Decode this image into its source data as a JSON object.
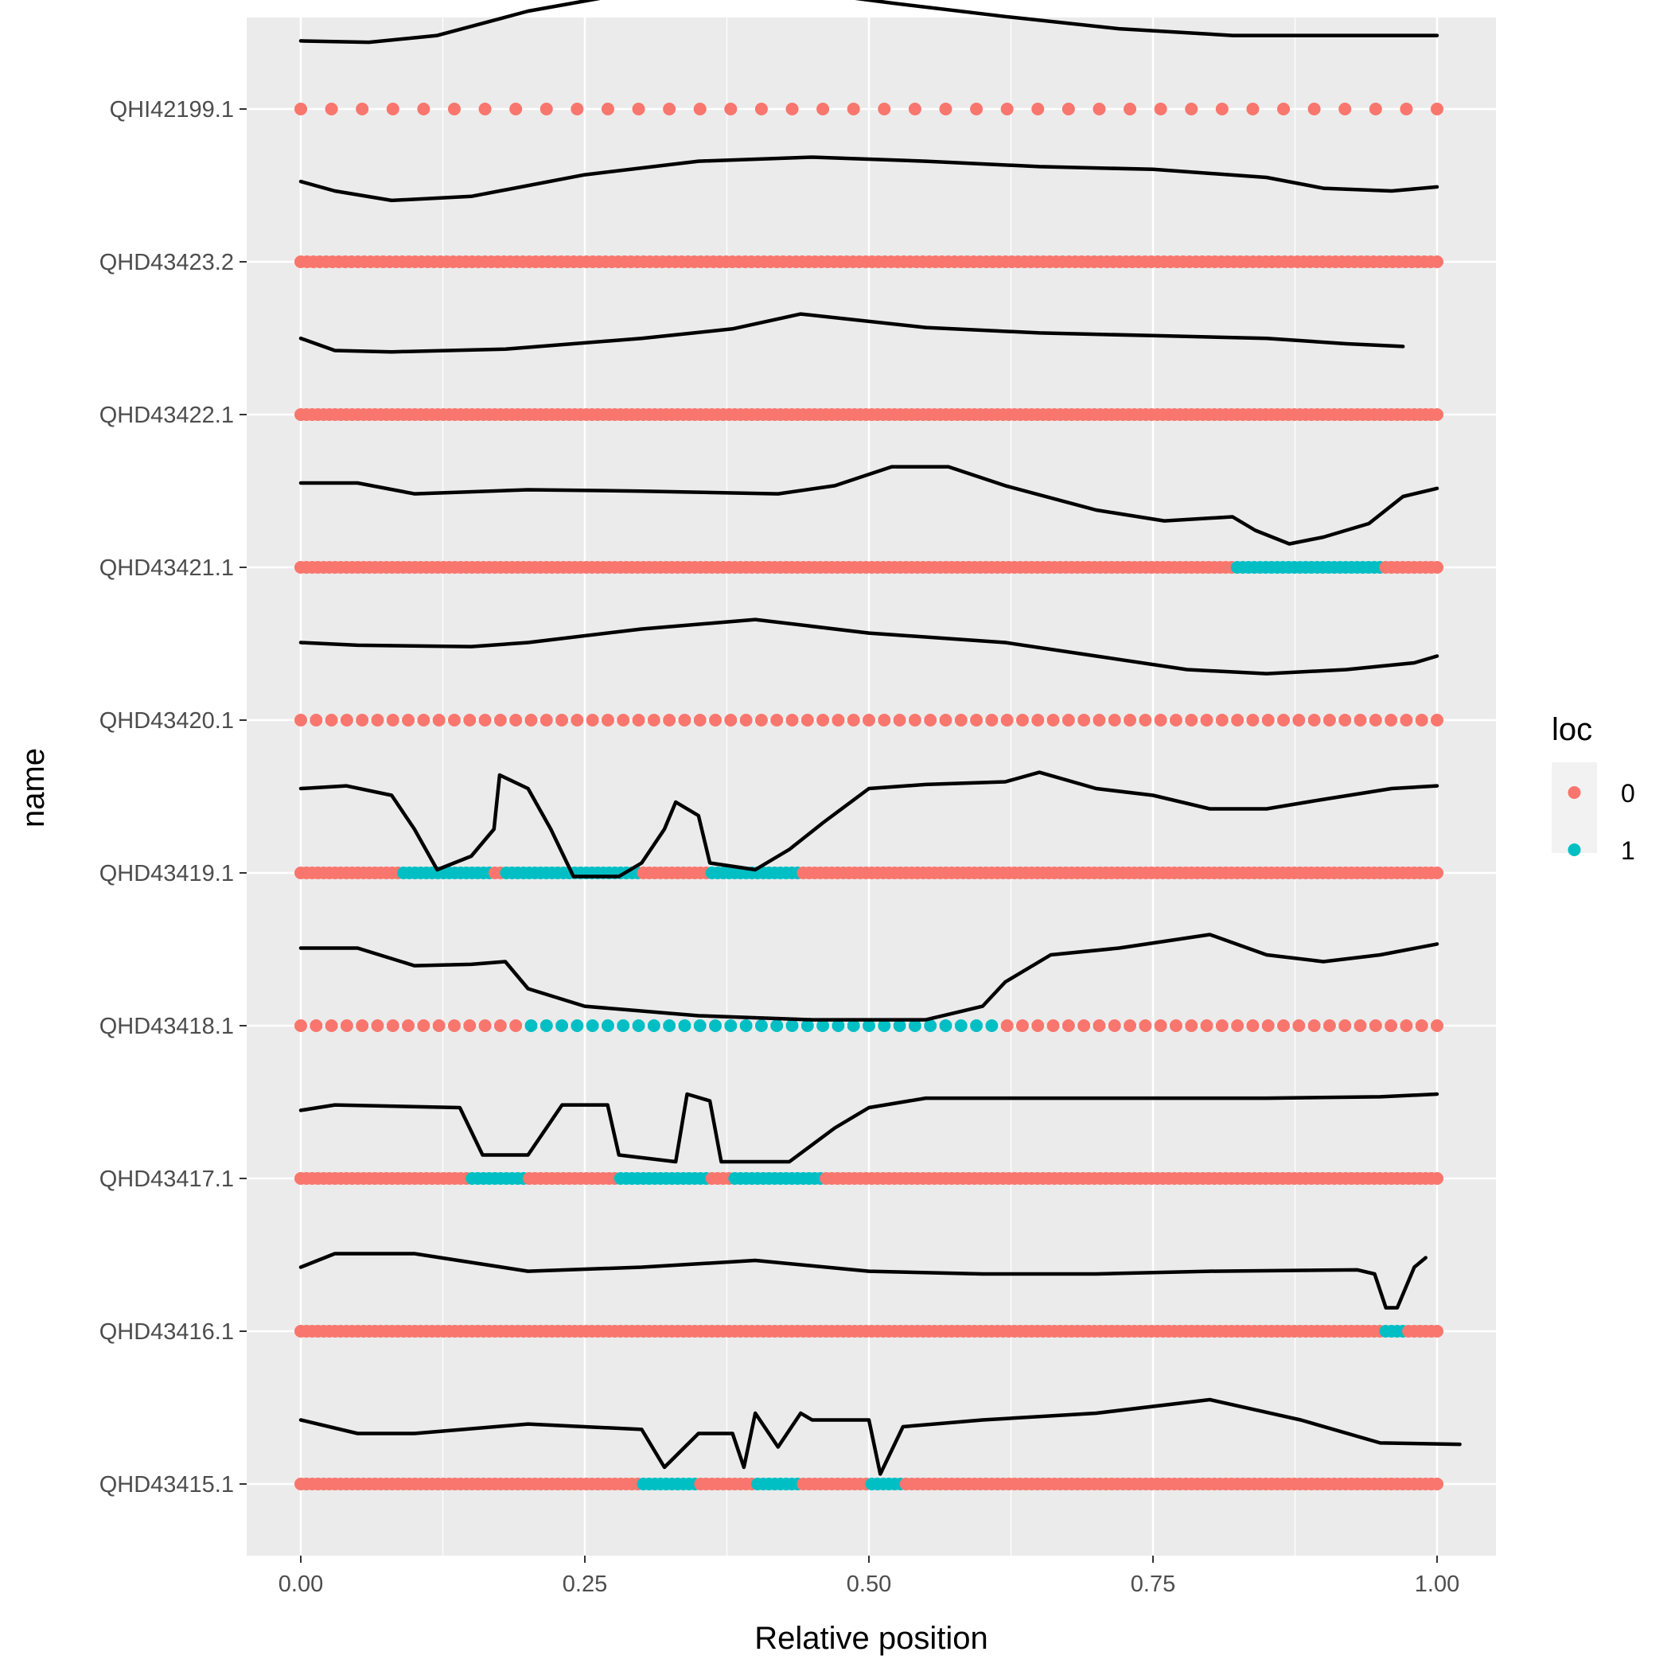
{
  "chart_data": {
    "type": "scatter",
    "xlabel": "Relative position",
    "ylabel": "name",
    "xlim": [
      -0.1,
      1.1
    ],
    "x_ticks": [
      0.0,
      0.25,
      0.5,
      0.75,
      1.0
    ],
    "x_tick_labels": [
      "0.00",
      "0.25",
      "0.50",
      "0.75",
      "1.00"
    ],
    "grid": true,
    "legend": {
      "title": "loc",
      "placement": "right",
      "entries": [
        {
          "label": "0",
          "color": "#F8766D"
        },
        {
          "label": "1",
          "color": "#00BFC4"
        }
      ]
    },
    "colors": {
      "loc0": "#F8766D",
      "loc1": "#00BFC4",
      "panel": "#EBEBEB",
      "grid": "#FFFFFF",
      "curve": "#000000"
    },
    "categories": [
      "QHI42199.1",
      "QHD43423.2",
      "QHD43422.1",
      "QHD43421.1",
      "QHD43420.1",
      "QHD43419.1",
      "QHD43418.1",
      "QHD43417.1",
      "QHD43416.1",
      "QHD43415.1"
    ],
    "series": [
      {
        "name": "QHI42199.1",
        "points": 38,
        "loc1_ranges": [],
        "curve": [
          [
            0.0,
            0.18
          ],
          [
            0.06,
            0.17
          ],
          [
            0.12,
            0.22
          ],
          [
            0.2,
            0.4
          ],
          [
            0.3,
            0.55
          ],
          [
            0.42,
            0.57
          ],
          [
            0.52,
            0.46
          ],
          [
            0.62,
            0.36
          ],
          [
            0.72,
            0.27
          ],
          [
            0.82,
            0.22
          ],
          [
            0.9,
            0.22
          ],
          [
            1.0,
            0.22
          ]
        ]
      },
      {
        "name": "QHD43423.2",
        "points": 180,
        "loc1_ranges": [],
        "curve": [
          [
            0.0,
            0.27
          ],
          [
            0.03,
            0.2
          ],
          [
            0.08,
            0.13
          ],
          [
            0.15,
            0.16
          ],
          [
            0.25,
            0.32
          ],
          [
            0.35,
            0.42
          ],
          [
            0.45,
            0.45
          ],
          [
            0.55,
            0.42
          ],
          [
            0.65,
            0.38
          ],
          [
            0.75,
            0.36
          ],
          [
            0.85,
            0.3
          ],
          [
            0.9,
            0.22
          ],
          [
            0.96,
            0.2
          ],
          [
            1.0,
            0.23
          ]
        ]
      },
      {
        "name": "QHD43422.1",
        "points": 200,
        "loc1_ranges": [],
        "curve": [
          [
            0.0,
            0.24
          ],
          [
            0.03,
            0.15
          ],
          [
            0.08,
            0.14
          ],
          [
            0.18,
            0.16
          ],
          [
            0.3,
            0.24
          ],
          [
            0.38,
            0.31
          ],
          [
            0.44,
            0.42
          ],
          [
            0.55,
            0.32
          ],
          [
            0.65,
            0.28
          ],
          [
            0.75,
            0.26
          ],
          [
            0.85,
            0.24
          ],
          [
            0.92,
            0.2
          ],
          [
            0.97,
            0.18
          ]
        ]
      },
      {
        "name": "QHD43421.1",
        "points": 200,
        "loc1_ranges": [
          [
            0.82,
            0.95
          ]
        ],
        "curve": [
          [
            0.0,
            0.3
          ],
          [
            0.05,
            0.3
          ],
          [
            0.1,
            0.22
          ],
          [
            0.2,
            0.25
          ],
          [
            0.3,
            0.24
          ],
          [
            0.42,
            0.22
          ],
          [
            0.47,
            0.28
          ],
          [
            0.52,
            0.42
          ],
          [
            0.57,
            0.42
          ],
          [
            0.62,
            0.28
          ],
          [
            0.7,
            0.1
          ],
          [
            0.76,
            0.02
          ],
          [
            0.82,
            0.05
          ],
          [
            0.84,
            -0.05
          ],
          [
            0.87,
            -0.15
          ],
          [
            0.9,
            -0.1
          ],
          [
            0.94,
            0.0
          ],
          [
            0.97,
            0.2
          ],
          [
            1.0,
            0.26
          ]
        ]
      },
      {
        "name": "QHD43420.1",
        "points": 75,
        "loc1_ranges": [],
        "curve": [
          [
            0.0,
            0.25
          ],
          [
            0.05,
            0.23
          ],
          [
            0.15,
            0.22
          ],
          [
            0.2,
            0.25
          ],
          [
            0.3,
            0.35
          ],
          [
            0.4,
            0.42
          ],
          [
            0.5,
            0.32
          ],
          [
            0.62,
            0.25
          ],
          [
            0.7,
            0.15
          ],
          [
            0.78,
            0.05
          ],
          [
            0.85,
            0.02
          ],
          [
            0.92,
            0.05
          ],
          [
            0.98,
            0.1
          ],
          [
            1.0,
            0.15
          ]
        ]
      },
      {
        "name": "QHD43419.1",
        "points": 200,
        "loc1_ranges": [
          [
            0.09,
            0.17
          ],
          [
            0.18,
            0.3
          ],
          [
            0.36,
            0.44
          ]
        ],
        "curve": [
          [
            0.0,
            0.3
          ],
          [
            0.04,
            0.32
          ],
          [
            0.08,
            0.25
          ],
          [
            0.1,
            0.0
          ],
          [
            0.12,
            -0.3
          ],
          [
            0.15,
            -0.2
          ],
          [
            0.17,
            0.0
          ],
          [
            0.175,
            0.4
          ],
          [
            0.2,
            0.3
          ],
          [
            0.22,
            0.0
          ],
          [
            0.24,
            -0.35
          ],
          [
            0.28,
            -0.35
          ],
          [
            0.3,
            -0.25
          ],
          [
            0.32,
            0.0
          ],
          [
            0.33,
            0.2
          ],
          [
            0.35,
            0.1
          ],
          [
            0.36,
            -0.25
          ],
          [
            0.4,
            -0.3
          ],
          [
            0.43,
            -0.15
          ],
          [
            0.46,
            0.05
          ],
          [
            0.5,
            0.3
          ],
          [
            0.55,
            0.33
          ],
          [
            0.62,
            0.35
          ],
          [
            0.65,
            0.42
          ],
          [
            0.7,
            0.3
          ],
          [
            0.75,
            0.25
          ],
          [
            0.8,
            0.15
          ],
          [
            0.85,
            0.15
          ],
          [
            0.9,
            0.22
          ],
          [
            0.96,
            0.3
          ],
          [
            1.0,
            0.32
          ]
        ]
      },
      {
        "name": "QHD43418.1",
        "points": 75,
        "loc1_ranges": [
          [
            0.19,
            0.61
          ]
        ],
        "curve": [
          [
            0.0,
            0.25
          ],
          [
            0.05,
            0.25
          ],
          [
            0.1,
            0.12
          ],
          [
            0.15,
            0.13
          ],
          [
            0.18,
            0.15
          ],
          [
            0.2,
            -0.05
          ],
          [
            0.25,
            -0.18
          ],
          [
            0.35,
            -0.25
          ],
          [
            0.45,
            -0.28
          ],
          [
            0.55,
            -0.28
          ],
          [
            0.6,
            -0.18
          ],
          [
            0.62,
            0.0
          ],
          [
            0.66,
            0.2
          ],
          [
            0.72,
            0.25
          ],
          [
            0.8,
            0.35
          ],
          [
            0.85,
            0.2
          ],
          [
            0.9,
            0.15
          ],
          [
            0.95,
            0.2
          ],
          [
            1.0,
            0.28
          ]
        ]
      },
      {
        "name": "QHD43417.1",
        "points": 200,
        "loc1_ranges": [
          [
            0.15,
            0.2
          ],
          [
            0.28,
            0.36
          ],
          [
            0.38,
            0.46
          ]
        ],
        "curve": [
          [
            0.0,
            0.18
          ],
          [
            0.03,
            0.22
          ],
          [
            0.14,
            0.2
          ],
          [
            0.16,
            -0.15
          ],
          [
            0.2,
            -0.15
          ],
          [
            0.23,
            0.22
          ],
          [
            0.27,
            0.22
          ],
          [
            0.28,
            -0.15
          ],
          [
            0.33,
            -0.2
          ],
          [
            0.34,
            0.3
          ],
          [
            0.36,
            0.25
          ],
          [
            0.37,
            -0.2
          ],
          [
            0.43,
            -0.2
          ],
          [
            0.47,
            0.05
          ],
          [
            0.5,
            0.2
          ],
          [
            0.55,
            0.27
          ],
          [
            0.7,
            0.27
          ],
          [
            0.85,
            0.27
          ],
          [
            0.95,
            0.28
          ],
          [
            1.0,
            0.3
          ]
        ]
      },
      {
        "name": "QHD43416.1",
        "points": 200,
        "loc1_ranges": [
          [
            0.95,
            0.97
          ]
        ],
        "curve": [
          [
            0.0,
            0.15
          ],
          [
            0.03,
            0.25
          ],
          [
            0.1,
            0.25
          ],
          [
            0.2,
            0.12
          ],
          [
            0.3,
            0.15
          ],
          [
            0.4,
            0.2
          ],
          [
            0.5,
            0.12
          ],
          [
            0.6,
            0.1
          ],
          [
            0.7,
            0.1
          ],
          [
            0.8,
            0.12
          ],
          [
            0.93,
            0.13
          ],
          [
            0.945,
            0.1
          ],
          [
            0.955,
            -0.15
          ],
          [
            0.965,
            -0.15
          ],
          [
            0.98,
            0.15
          ],
          [
            0.99,
            0.22
          ]
        ]
      },
      {
        "name": "QHD43415.1",
        "points": 200,
        "loc1_ranges": [
          [
            0.3,
            0.35
          ],
          [
            0.4,
            0.44
          ],
          [
            0.5,
            0.53
          ]
        ],
        "curve": [
          [
            0.0,
            0.15
          ],
          [
            0.05,
            0.05
          ],
          [
            0.1,
            0.05
          ],
          [
            0.2,
            0.12
          ],
          [
            0.3,
            0.08
          ],
          [
            0.32,
            -0.2
          ],
          [
            0.35,
            0.05
          ],
          [
            0.38,
            0.05
          ],
          [
            0.39,
            -0.2
          ],
          [
            0.4,
            0.2
          ],
          [
            0.42,
            -0.05
          ],
          [
            0.44,
            0.2
          ],
          [
            0.45,
            0.15
          ],
          [
            0.5,
            0.15
          ],
          [
            0.51,
            -0.25
          ],
          [
            0.53,
            0.1
          ],
          [
            0.6,
            0.15
          ],
          [
            0.7,
            0.2
          ],
          [
            0.8,
            0.3
          ],
          [
            0.88,
            0.15
          ],
          [
            0.95,
            -0.02
          ],
          [
            1.02,
            -0.03
          ]
        ]
      }
    ]
  }
}
